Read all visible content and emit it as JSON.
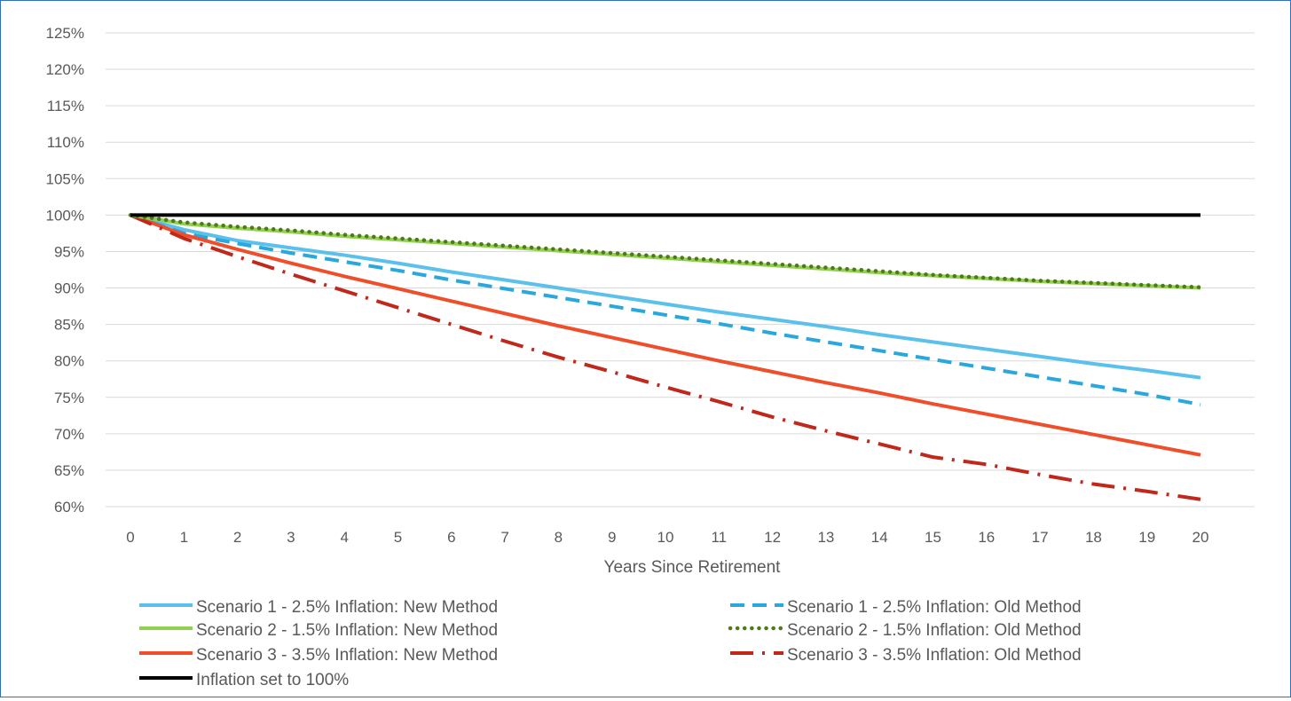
{
  "chart_data": {
    "type": "line",
    "title": "",
    "xlabel": "Years Since Retirement",
    "ylabel": "",
    "x": [
      0,
      1,
      2,
      3,
      4,
      5,
      6,
      7,
      8,
      9,
      10,
      11,
      12,
      13,
      14,
      15,
      16,
      17,
      18,
      19,
      20
    ],
    "xlim": [
      0,
      20
    ],
    "ylim": [
      60,
      125
    ],
    "y_ticks": [
      "60%",
      "65%",
      "70%",
      "75%",
      "80%",
      "85%",
      "90%",
      "95%",
      "100%",
      "105%",
      "110%",
      "115%",
      "120%",
      "125%"
    ],
    "y_tick_values": [
      60,
      65,
      70,
      75,
      80,
      85,
      90,
      95,
      100,
      105,
      110,
      115,
      120,
      125
    ],
    "grid": true,
    "legend_position": "bottom",
    "series": [
      {
        "name": "Scenario 1 - 2.5% Inflation: New Method",
        "color": "#5bc0eb",
        "dash": "solid",
        "values": [
          100,
          98.0,
          96.5,
          95.5,
          94.5,
          93.4,
          92.2,
          91.1,
          90.0,
          88.9,
          87.8,
          86.7,
          85.7,
          84.7,
          83.6,
          82.6,
          81.6,
          80.6,
          79.6,
          78.7,
          77.7
        ]
      },
      {
        "name": "Scenario 1 - 2.5% Inflation: Old Method",
        "color": "#2aa7dd",
        "dash": "dash",
        "values": [
          100,
          97.5,
          96.1,
          94.8,
          93.6,
          92.4,
          91.1,
          89.9,
          88.7,
          87.5,
          86.3,
          85.1,
          83.8,
          82.6,
          81.4,
          80.2,
          79.0,
          77.8,
          76.6,
          75.4,
          74.0
        ]
      },
      {
        "name": "Scenario 2 - 1.5% Inflation: New Method",
        "color": "#92d050",
        "dash": "solid",
        "values": [
          100,
          98.8,
          98.2,
          97.7,
          97.1,
          96.6,
          96.1,
          95.6,
          95.1,
          94.6,
          94.1,
          93.6,
          93.1,
          92.6,
          92.1,
          91.7,
          91.3,
          90.9,
          90.6,
          90.3,
          90.0
        ]
      },
      {
        "name": "Scenario 2 - 1.5% Inflation: Old Method",
        "color": "#4e7a18",
        "dash": "dot",
        "values": [
          100,
          99.0,
          98.4,
          97.9,
          97.3,
          96.8,
          96.3,
          95.8,
          95.3,
          94.8,
          94.3,
          93.8,
          93.3,
          92.8,
          92.3,
          91.8,
          91.4,
          91.0,
          90.7,
          90.4,
          90.1
        ]
      },
      {
        "name": "Scenario 3 - 3.5% Inflation: New Method",
        "color": "#f04e2a",
        "dash": "solid",
        "values": [
          100,
          97.3,
          95.3,
          93.4,
          91.6,
          89.9,
          88.2,
          86.5,
          84.8,
          83.2,
          81.6,
          80.0,
          78.5,
          77.0,
          75.6,
          74.1,
          72.7,
          71.3,
          69.9,
          68.5,
          67.1
        ]
      },
      {
        "name": "Scenario 3 - 3.5% Inflation: Old Method",
        "color": "#c0281c",
        "dash": "dashdot",
        "values": [
          100,
          96.8,
          94.3,
          91.9,
          89.6,
          87.3,
          85.0,
          82.7,
          80.5,
          78.5,
          76.4,
          74.4,
          72.3,
          70.4,
          68.6,
          66.8,
          65.8,
          64.4,
          63.1,
          62.1,
          61.0
        ]
      },
      {
        "name": "Inflation set to 100%",
        "color": "#000000",
        "dash": "solid",
        "values": [
          100,
          100,
          100,
          100,
          100,
          100,
          100,
          100,
          100,
          100,
          100,
          100,
          100,
          100,
          100,
          100,
          100,
          100,
          100,
          100,
          100
        ]
      }
    ]
  }
}
